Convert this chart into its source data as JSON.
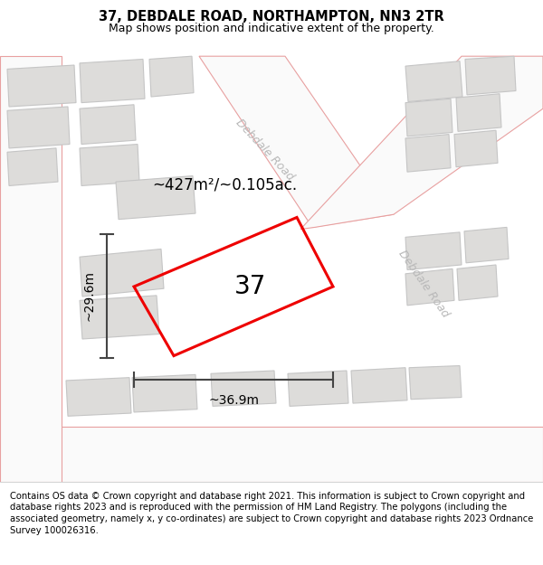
{
  "title_line1": "37, DEBDALE ROAD, NORTHAMPTON, NN3 2TR",
  "title_line2": "Map shows position and indicative extent of the property.",
  "footer_text": "Contains OS data © Crown copyright and database right 2021. This information is subject to Crown copyright and database rights 2023 and is reproduced with the permission of HM Land Registry. The polygons (including the associated geometry, namely x, y co-ordinates) are subject to Crown copyright and database rights 2023 Ordnance Survey 100026316.",
  "area_label": "~427m²/~0.105ac.",
  "number_label": "37",
  "width_label": "~36.9m",
  "height_label": "~29.6m",
  "map_bg": "#eeede9",
  "road_fill": "#fafafa",
  "road_stroke": "#e8a0a0",
  "building_fill": "#dddcda",
  "building_stroke": "#c5c5c5",
  "red_plot_color": "#ee0000",
  "dim_line_color": "#444444",
  "road_label_color": "#b8b8b8",
  "title_fontsize": 10.5,
  "subtitle_fontsize": 9.0,
  "area_fontsize": 12,
  "number_fontsize": 20,
  "dim_fontsize": 10,
  "road_label_fontsize": 9,
  "footer_fontsize": 7.2
}
